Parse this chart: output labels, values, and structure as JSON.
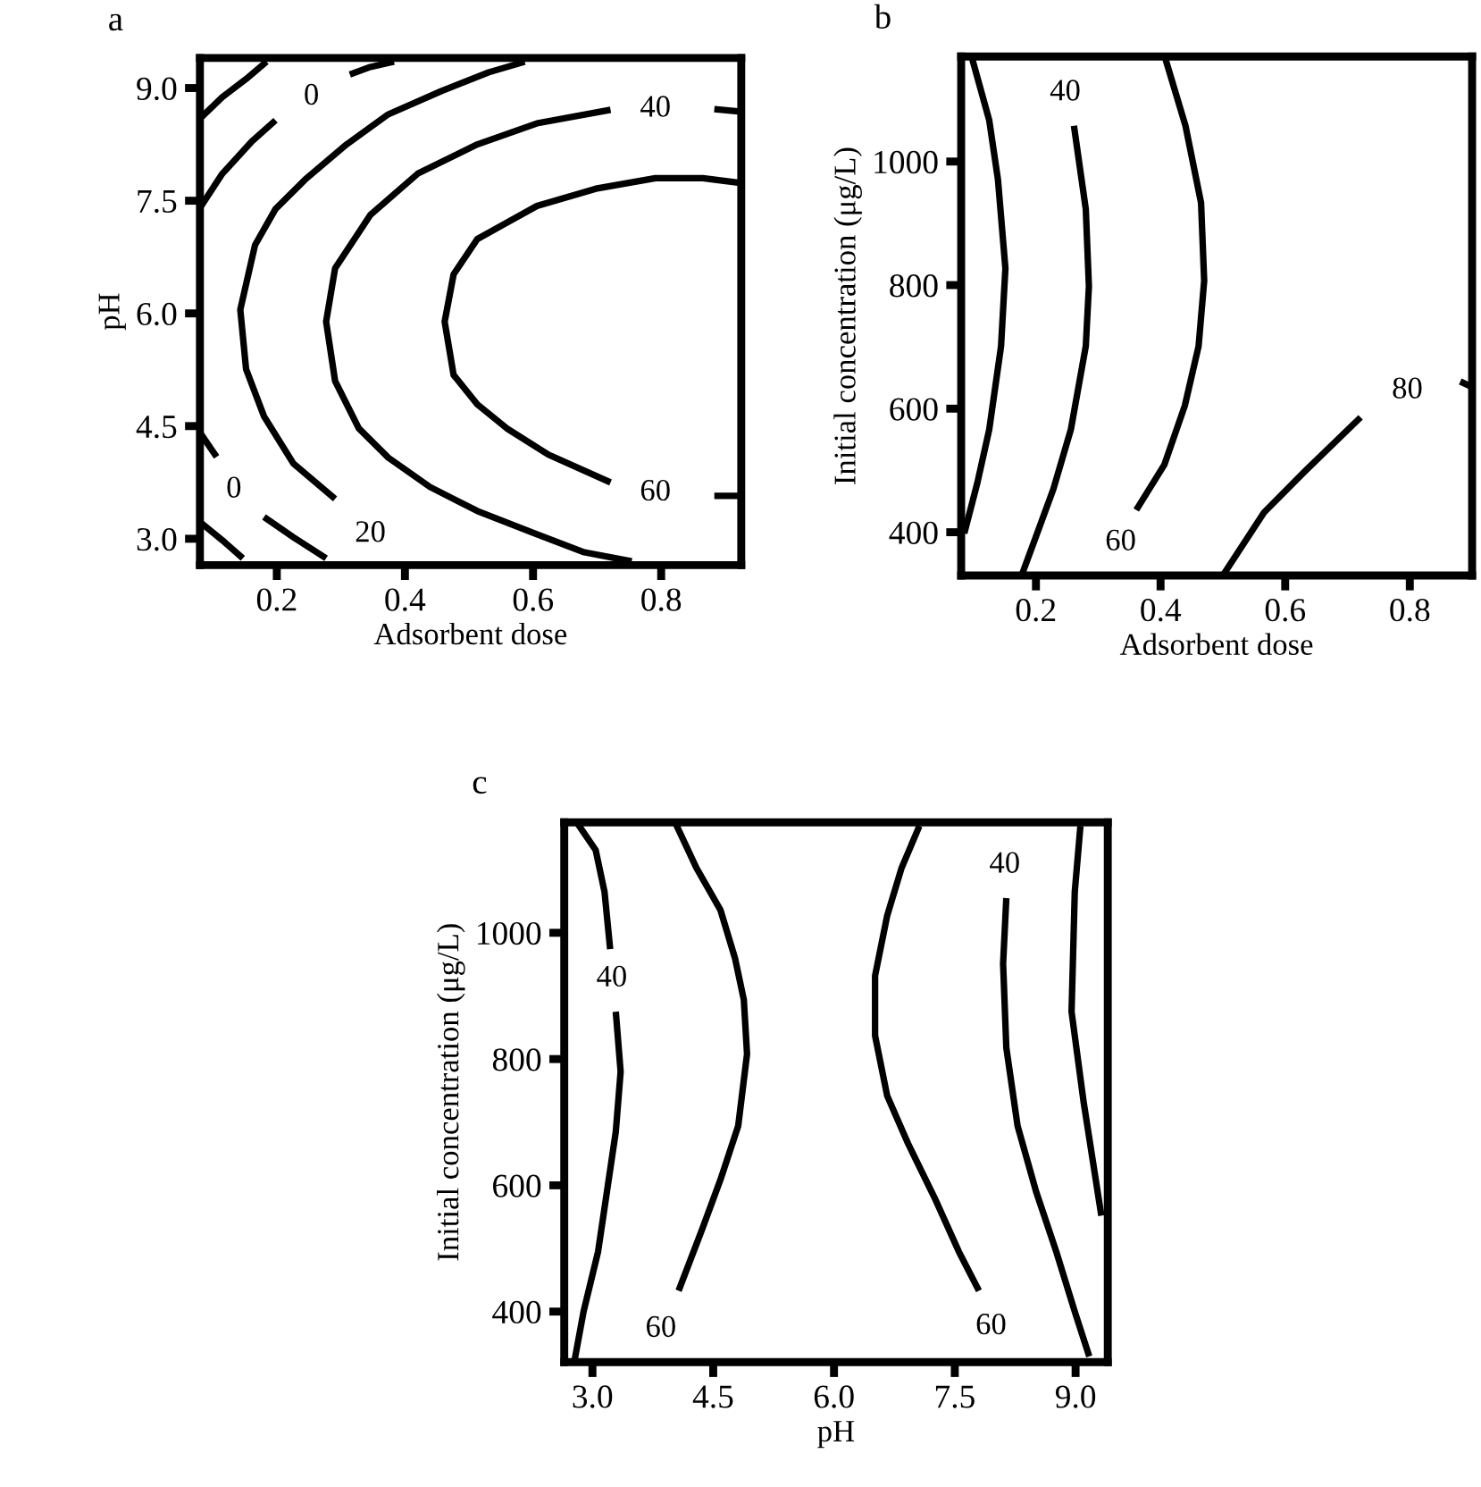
{
  "chart_data": [
    {
      "type": "line",
      "title": "a",
      "xlabel": "Adsorbent dose",
      "ylabel": "pH",
      "xlim": [
        0.08,
        0.925
      ],
      "ylim": [
        2.65,
        9.4
      ],
      "xticks": [
        0.2,
        0.4,
        0.6,
        0.8
      ],
      "yticks": [
        {
          "value": 3,
          "label": "3.0"
        },
        {
          "value": 4.5,
          "label": "4.5"
        },
        {
          "value": 6,
          "label": "6.0"
        },
        {
          "value": 7.5,
          "label": "7.5"
        },
        {
          "value": 9,
          "label": "9.0"
        }
      ],
      "series": [
        {
          "color": "#000000",
          "x": [
            0.082,
            0.115,
            0.152,
            0.184
          ],
          "values": [
            8.61,
            8.88,
            9.12,
            9.35
          ]
        },
        {
          "color": "#000000",
          "x": [
            0.082,
            0.115,
            0.161,
            0.198
          ],
          "values": [
            7.43,
            7.86,
            8.29,
            8.57
          ]
        },
        {
          "color": "#000000",
          "x": [
            0.314,
            0.346,
            0.383
          ],
          "values": [
            9.18,
            9.28,
            9.35
          ]
        },
        {
          "color": "#000000",
          "x": [
            0.587,
            0.531,
            0.457,
            0.374,
            0.309,
            0.244,
            0.198,
            0.166,
            0.143,
            0.152,
            0.18,
            0.226,
            0.291
          ],
          "values": [
            9.35,
            9.21,
            8.96,
            8.65,
            8.25,
            7.78,
            7.39,
            6.91,
            6.05,
            5.26,
            4.63,
            4.0,
            3.53
          ]
        },
        {
          "color": "#000000",
          "x": [
            0.721,
            0.606,
            0.513,
            0.42,
            0.346,
            0.291,
            0.277,
            0.291,
            0.328,
            0.374,
            0.439,
            0.513,
            0.606,
            0.68,
            0.754
          ],
          "values": [
            8.71,
            8.53,
            8.25,
            7.86,
            7.31,
            6.6,
            5.89,
            5.1,
            4.47,
            4.08,
            3.69,
            3.37,
            3.06,
            2.82,
            2.7
          ]
        },
        {
          "color": "#000000",
          "x": [
            0.883,
            0.92
          ],
          "values": [
            8.72,
            8.69
          ]
        },
        {
          "color": "#000000",
          "x": [
            0.92,
            0.865,
            0.791,
            0.698,
            0.606,
            0.513,
            0.476,
            0.462,
            0.476,
            0.513,
            0.559,
            0.624,
            0.721
          ],
          "values": [
            7.74,
            7.8,
            7.8,
            7.66,
            7.43,
            6.99,
            6.52,
            5.89,
            5.18,
            4.79,
            4.47,
            4.12,
            3.75
          ]
        },
        {
          "color": "#000000",
          "x": [
            0.883,
            0.92
          ],
          "values": [
            3.57,
            3.57
          ]
        },
        {
          "color": "#000000",
          "x": [
            0.082,
            0.106
          ],
          "values": [
            4.39,
            4.09
          ]
        },
        {
          "color": "#000000",
          "x": [
            0.082,
            0.115,
            0.147
          ],
          "values": [
            3.21,
            2.98,
            2.74
          ]
        },
        {
          "color": "#000000",
          "x": [
            0.18,
            0.226,
            0.277
          ],
          "values": [
            3.29,
            3.02,
            2.74
          ]
        }
      ],
      "annotations": [
        {
          "text": "0",
          "x": 0.254,
          "y": 8.88
        },
        {
          "text": "40",
          "x": 0.791,
          "y": 8.72
        },
        {
          "text": "60",
          "x": 0.791,
          "y": 3.61
        },
        {
          "text": "0",
          "x": 0.133,
          "y": 3.65
        },
        {
          "text": "20",
          "x": 0.346,
          "y": 3.06
        }
      ]
    },
    {
      "type": "line",
      "title": "b",
      "xlabel": "Adsorbent dose",
      "ylabel": "Initial concentration (μg/L)",
      "xlim": [
        0.08,
        0.9
      ],
      "ylim": [
        330,
        1170
      ],
      "xticks": [
        0.2,
        0.4,
        0.6,
        0.8
      ],
      "yticks": [
        400,
        600,
        800,
        1000
      ],
      "series": [
        {
          "color": "#000000",
          "x": [
            0.097,
            0.125,
            0.139,
            0.151,
            0.144,
            0.125,
            0.106,
            0.085
          ],
          "values": [
            1169,
            1067,
            971,
            827,
            701,
            566,
            480,
            398
          ]
        },
        {
          "color": "#000000",
          "x": [
            0.261,
            0.28,
            0.285,
            0.28,
            0.256,
            0.228,
            0.2,
            0.177
          ],
          "values": [
            1058,
            923,
            798,
            701,
            566,
            470,
            393,
            330
          ]
        },
        {
          "color": "#000000",
          "x": [
            0.407,
            0.44,
            0.465,
            0.47,
            0.461,
            0.439,
            0.406,
            0.361
          ],
          "values": [
            1169,
            1058,
            933,
            807,
            701,
            605,
            509,
            436
          ]
        },
        {
          "color": "#000000",
          "x": [
            0.5,
            0.566,
            0.632,
            0.721
          ],
          "values": [
            330,
            432,
            499,
            586
          ]
        },
        {
          "color": "#000000",
          "x": [
            0.881,
            0.898
          ],
          "values": [
            644,
            636
          ]
        }
      ],
      "annotations": [
        {
          "text": "40",
          "x": 0.247,
          "y": 1111
        },
        {
          "text": "60",
          "x": 0.336,
          "y": 383
        },
        {
          "text": "80",
          "x": 0.796,
          "y": 629
        }
      ]
    },
    {
      "type": "line",
      "title": "c",
      "xlabel": "pH",
      "ylabel": "Initial concentration (μg/L)",
      "xlim": [
        2.65,
        9.4
      ],
      "ylim": [
        320,
        1175
      ],
      "xticks": [
        {
          "value": 3,
          "label": "3.0"
        },
        {
          "value": 4.5,
          "label": "4.5"
        },
        {
          "value": 6,
          "label": "6.0"
        },
        {
          "value": 7.5,
          "label": "7.5"
        },
        {
          "value": 9,
          "label": "9.0"
        }
      ],
      "yticks": [
        400,
        600,
        800,
        1000
      ],
      "series": [
        {
          "color": "#000000",
          "x": [
            2.81,
            3.04,
            3.15,
            3.22
          ],
          "values": [
            1174,
            1131,
            1065,
            974
          ]
        },
        {
          "color": "#000000",
          "x": [
            3.29,
            3.35,
            3.29,
            3.18,
            3.07,
            2.89,
            2.78
          ],
          "values": [
            875,
            780,
            685,
            590,
            495,
            400,
            324
          ]
        },
        {
          "color": "#000000",
          "x": [
            4.03,
            4.29,
            4.59,
            4.77,
            4.88,
            4.92,
            4.81,
            4.59,
            4.37,
            4.07
          ],
          "values": [
            1174,
            1103,
            1036,
            960,
            894,
            808,
            694,
            609,
            533,
            433
          ]
        },
        {
          "color": "#000000",
          "x": [
            7.06,
            6.84,
            6.66,
            6.51,
            6.51,
            6.66,
            6.92,
            7.25,
            7.55,
            7.8
          ],
          "values": [
            1169,
            1103,
            1027,
            932,
            837,
            742,
            666,
            580,
            495,
            433
          ]
        },
        {
          "color": "#000000",
          "x": [
            8.14,
            8.1,
            8.14,
            8.28,
            8.51,
            8.76,
            8.99,
            9.17
          ],
          "values": [
            1055,
            951,
            818,
            694,
            590,
            495,
            400,
            329
          ]
        },
        {
          "color": "#000000",
          "x": [
            9.06,
            8.99,
            8.95,
            9.1,
            9.32
          ],
          "values": [
            1169,
            1065,
            875,
            732,
            552
          ]
        }
      ],
      "annotations": [
        {
          "text": "40",
          "x": 3.24,
          "y": 927
        },
        {
          "text": "60",
          "x": 3.85,
          "y": 372
        },
        {
          "text": "40",
          "x": 8.12,
          "y": 1107
        },
        {
          "text": "60",
          "x": 7.95,
          "y": 376
        }
      ]
    }
  ]
}
